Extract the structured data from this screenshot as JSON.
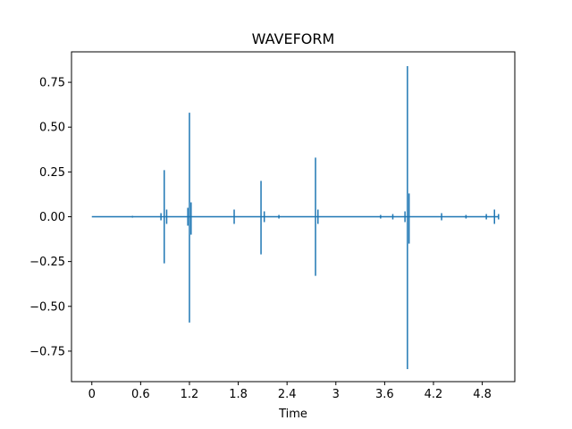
{
  "chart_data": {
    "type": "line",
    "title": "WAVEFORM",
    "xlabel": "Time",
    "ylabel": "",
    "xlim": [
      -0.25,
      5.2
    ],
    "ylim": [
      -0.92,
      0.92
    ],
    "x_ticks": [
      0,
      0.6,
      1.2,
      1.8,
      2.4,
      3,
      3.6,
      4.2,
      4.8
    ],
    "x_tick_labels": [
      "0",
      "0.6",
      "1.2",
      "1.8",
      "2.4",
      "3",
      "3.6",
      "4.2",
      "4.8"
    ],
    "y_ticks": [
      0.75,
      0.5,
      0.25,
      0.0,
      -0.25,
      -0.5,
      -0.75
    ],
    "y_tick_labels": [
      "0.75",
      "0.50",
      "0.25",
      "0.00",
      "−0.25",
      "−0.50",
      "−0.75"
    ],
    "grid": false,
    "color": "#1f77b4",
    "duration": 5.0,
    "series": [
      {
        "envelope": [
          {
            "x": 0.5,
            "max": 0.005,
            "min": -0.005
          },
          {
            "x": 0.85,
            "max": 0.02,
            "min": -0.02
          },
          {
            "x": 0.89,
            "max": 0.26,
            "min": -0.26
          },
          {
            "x": 0.92,
            "max": 0.04,
            "min": -0.04
          },
          {
            "x": 1.18,
            "max": 0.05,
            "min": -0.05
          },
          {
            "x": 1.2,
            "max": 0.58,
            "min": -0.59
          },
          {
            "x": 1.22,
            "max": 0.08,
            "min": -0.1
          },
          {
            "x": 1.75,
            "max": 0.04,
            "min": -0.04
          },
          {
            "x": 2.08,
            "max": 0.2,
            "min": -0.21
          },
          {
            "x": 2.12,
            "max": 0.03,
            "min": -0.03
          },
          {
            "x": 2.3,
            "max": 0.01,
            "min": -0.01
          },
          {
            "x": 2.75,
            "max": 0.33,
            "min": -0.33
          },
          {
            "x": 2.78,
            "max": 0.04,
            "min": -0.04
          },
          {
            "x": 3.55,
            "max": 0.01,
            "min": -0.01
          },
          {
            "x": 3.7,
            "max": 0.015,
            "min": -0.015
          },
          {
            "x": 3.85,
            "max": 0.03,
            "min": -0.03
          },
          {
            "x": 3.88,
            "max": 0.84,
            "min": -0.85
          },
          {
            "x": 3.9,
            "max": 0.13,
            "min": -0.15
          },
          {
            "x": 4.3,
            "max": 0.02,
            "min": -0.02
          },
          {
            "x": 4.6,
            "max": 0.01,
            "min": -0.01
          },
          {
            "x": 4.85,
            "max": 0.015,
            "min": -0.015
          },
          {
            "x": 4.95,
            "max": 0.04,
            "min": -0.04
          },
          {
            "x": 5.0,
            "max": 0.015,
            "min": -0.015
          }
        ]
      }
    ]
  }
}
